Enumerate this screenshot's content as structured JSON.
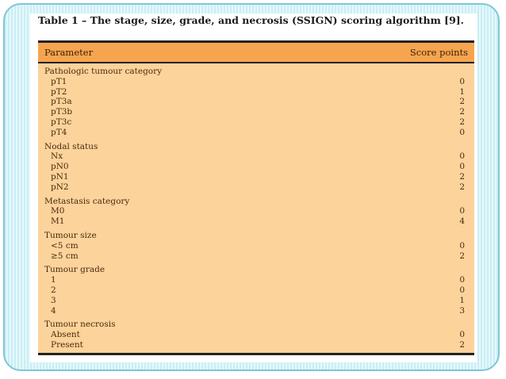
{
  "title": "Table 1 – The stage, size, grade, and necrosis (SSIGN) scoring algorithm [9].",
  "header": {
    "parameter": "Parameter",
    "score": "Score points"
  },
  "groups": [
    {
      "name": "Pathologic tumour category",
      "items": [
        {
          "label": "pT1",
          "score": "0"
        },
        {
          "label": "pT2",
          "score": "1"
        },
        {
          "label": "pT3a",
          "score": "2"
        },
        {
          "label": "pT3b",
          "score": "2"
        },
        {
          "label": "pT3c",
          "score": "2"
        },
        {
          "label": "pT4",
          "score": "0"
        }
      ]
    },
    {
      "name": "Nodal status",
      "items": [
        {
          "label": "Nx",
          "score": "0"
        },
        {
          "label": "pN0",
          "score": "0"
        },
        {
          "label": "pN1",
          "score": "2"
        },
        {
          "label": "pN2",
          "score": "2"
        }
      ]
    },
    {
      "name": "Metastasis category",
      "items": [
        {
          "label": "M0",
          "score": "0"
        },
        {
          "label": "M1",
          "score": "4"
        }
      ]
    },
    {
      "name": "Tumour size",
      "items": [
        {
          "label": "<5 cm",
          "score": "0"
        },
        {
          "label": "≥5 cm",
          "score": "2"
        }
      ]
    },
    {
      "name": "Tumour grade",
      "items": [
        {
          "label": "1",
          "score": "0"
        },
        {
          "label": "2",
          "score": "0"
        },
        {
          "label": "3",
          "score": "1"
        },
        {
          "label": "4",
          "score": "3"
        }
      ]
    },
    {
      "name": "Tumour necrosis",
      "items": [
        {
          "label": "Absent",
          "score": "0"
        },
        {
          "label": "Present",
          "score": "2"
        }
      ]
    }
  ]
}
